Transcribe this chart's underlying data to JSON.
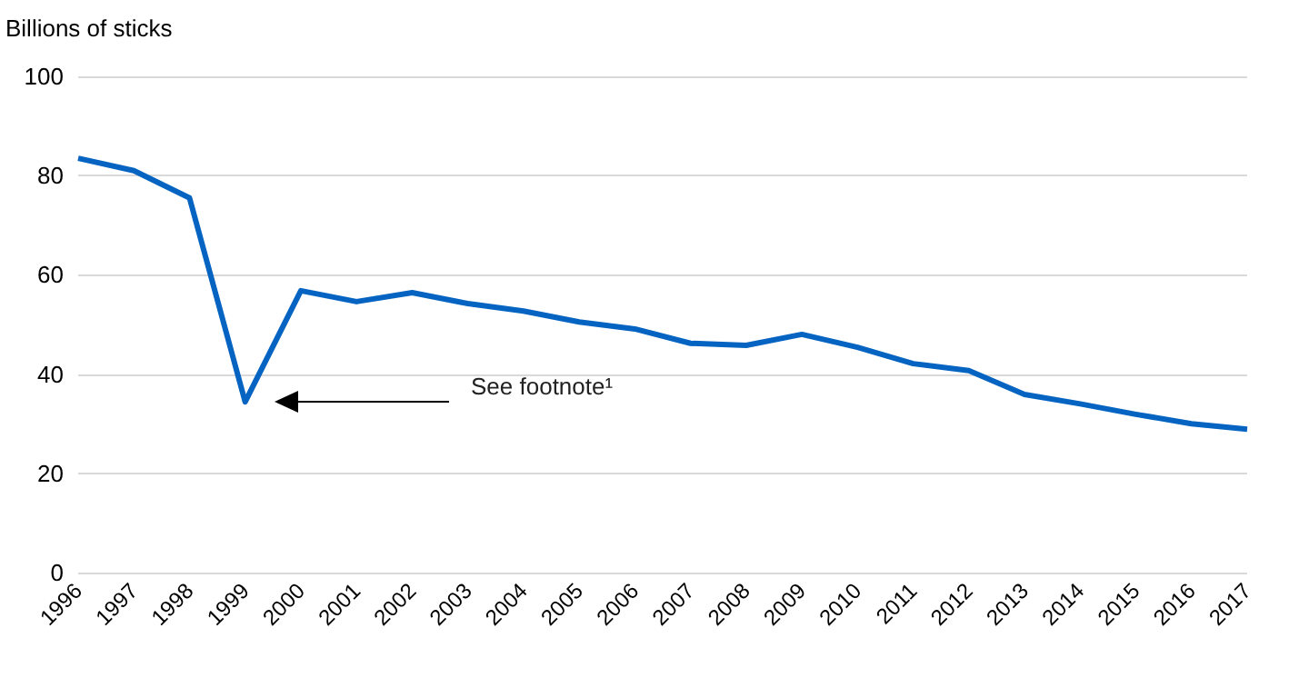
{
  "chart_data": {
    "type": "line",
    "ylabel": "Billions of sticks",
    "categories": [
      "1996",
      "1997",
      "1998",
      "1999",
      "2000",
      "2001",
      "2002",
      "2003",
      "2004",
      "2005",
      "2006",
      "2007",
      "2008",
      "2009",
      "2010",
      "2011",
      "2012",
      "2013",
      "2014",
      "2015",
      "2016",
      "2017"
    ],
    "series": [
      {
        "color": "#0563c1",
        "values": [
          83.5,
          81,
          75.5,
          34.4,
          56.8,
          54.6,
          56.4,
          54.2,
          52.7,
          50.5,
          49.1,
          46.2,
          45.8,
          48,
          45.4,
          42.1,
          40.7,
          35.9,
          34,
          31.9,
          30,
          28.9
        ]
      }
    ],
    "ylim": [
      0,
      100
    ],
    "yticks": [
      0,
      20,
      40,
      60,
      80,
      100
    ],
    "grid": "y",
    "marker": "none",
    "line_style": "solid",
    "annotations": [
      "See footnote¹"
    ]
  }
}
